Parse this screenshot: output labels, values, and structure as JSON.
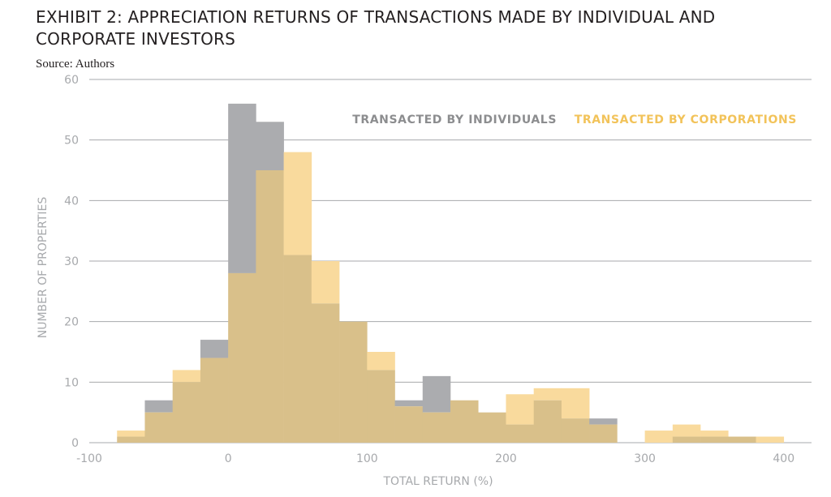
{
  "header": {
    "title": "EXHIBIT 2: APPRECIATION RETURNS OF TRANSACTIONS MADE BY INDIVIDUAL AND CORPORATE INVESTORS",
    "source": "Source: Authors"
  },
  "colors": {
    "individuals": "#abacaf",
    "corporations": "#f9da9d",
    "overlap": "#d9c08a",
    "individuals_text": "#8c8d8f",
    "corporations_text": "#f2c35a",
    "gridline": "#a7a9ac",
    "tick_text": "#a7a9ac"
  },
  "chart_data": {
    "type": "bar",
    "subtype": "overlapping-histogram",
    "title": "",
    "xlabel": "TOTAL RETURN (%)",
    "ylabel": "NUMBER OF PROPERTIES",
    "xlim": [
      -100,
      420
    ],
    "ylim": [
      0,
      60
    ],
    "x_ticks": [
      -100,
      0,
      100,
      200,
      300,
      400
    ],
    "y_ticks": [
      0,
      10,
      20,
      30,
      40,
      50,
      60
    ],
    "grid": "horizontal",
    "legend_position": "top-right",
    "bin_width": 20,
    "bin_starts": [
      -80,
      -60,
      -40,
      -20,
      0,
      20,
      40,
      60,
      80,
      100,
      120,
      140,
      160,
      180,
      200,
      220,
      240,
      260,
      280,
      300,
      320,
      340,
      360,
      380
    ],
    "series": [
      {
        "name": "TRANSACTED BY INDIVIDUALS",
        "values": [
          1,
          7,
          10,
          17,
          56,
          53,
          31,
          23,
          20,
          12,
          7,
          11,
          7,
          5,
          3,
          7,
          4,
          4,
          0,
          0,
          1,
          1,
          1,
          0
        ]
      },
      {
        "name": "TRANSACTED BY CORPORATIONS",
        "values": [
          2,
          5,
          12,
          14,
          28,
          45,
          48,
          30,
          20,
          15,
          6,
          5,
          7,
          5,
          8,
          9,
          9,
          3,
          0,
          2,
          3,
          2,
          1,
          1
        ]
      }
    ]
  }
}
